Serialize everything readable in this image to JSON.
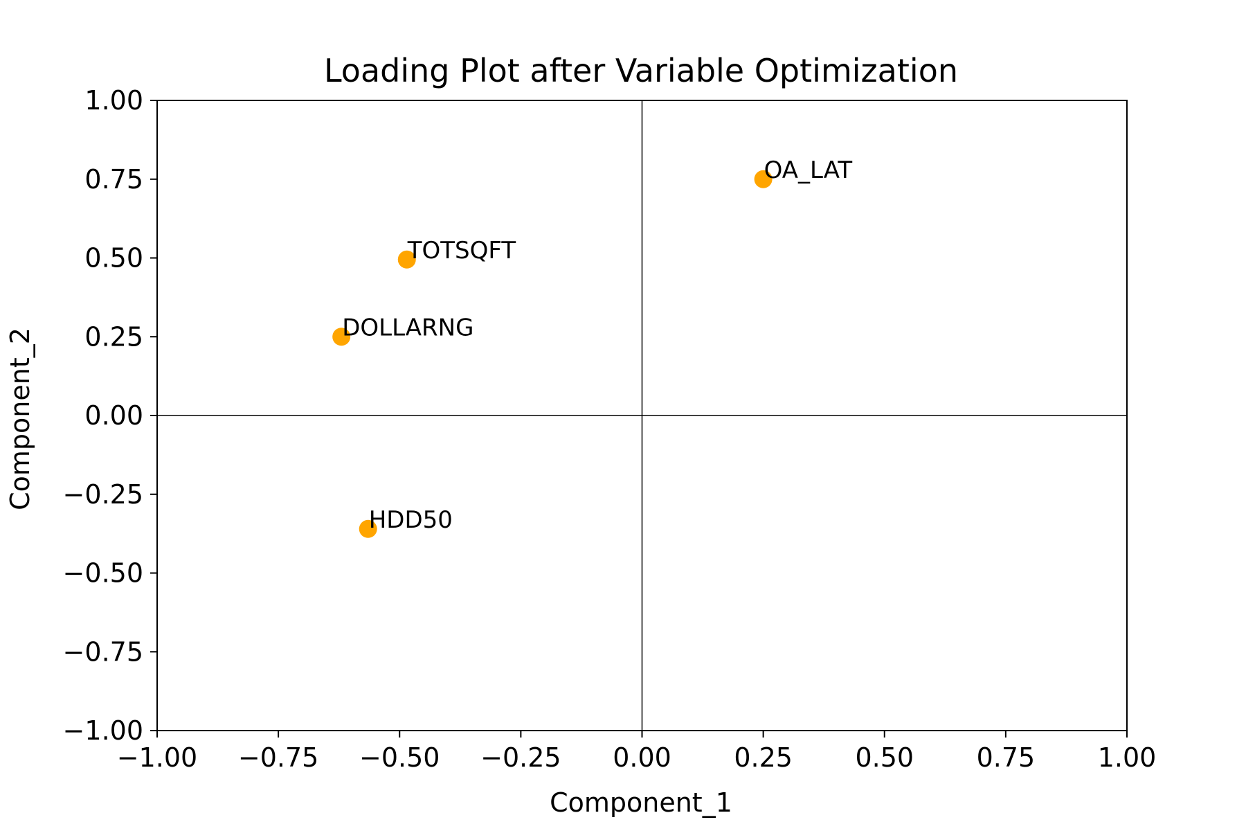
{
  "chart_data": {
    "type": "scatter",
    "title": "Loading Plot after Variable Optimization",
    "xlabel": "Component_1",
    "ylabel": "Component_2",
    "xlim": [
      -1.0,
      1.0
    ],
    "ylim": [
      -1.0,
      1.0
    ],
    "xticks": [
      "−1.00",
      "−0.75",
      "−0.50",
      "−0.25",
      "0.00",
      "0.25",
      "0.50",
      "0.75",
      "1.00"
    ],
    "yticks": [
      "−1.00",
      "−0.75",
      "−0.50",
      "−0.25",
      "0.00",
      "0.25",
      "0.50",
      "0.75",
      "1.00"
    ],
    "grid": false,
    "reference_lines": {
      "x": 0,
      "y": 0
    },
    "point_color": "#FFA500",
    "points": [
      {
        "label": "OA_LAT",
        "x": 0.25,
        "y": 0.75
      },
      {
        "label": "TOTSQFT",
        "x": -0.485,
        "y": 0.495
      },
      {
        "label": "DOLLARNG",
        "x": -0.62,
        "y": 0.25
      },
      {
        "label": "HDD50",
        "x": -0.565,
        "y": -0.36
      }
    ]
  }
}
